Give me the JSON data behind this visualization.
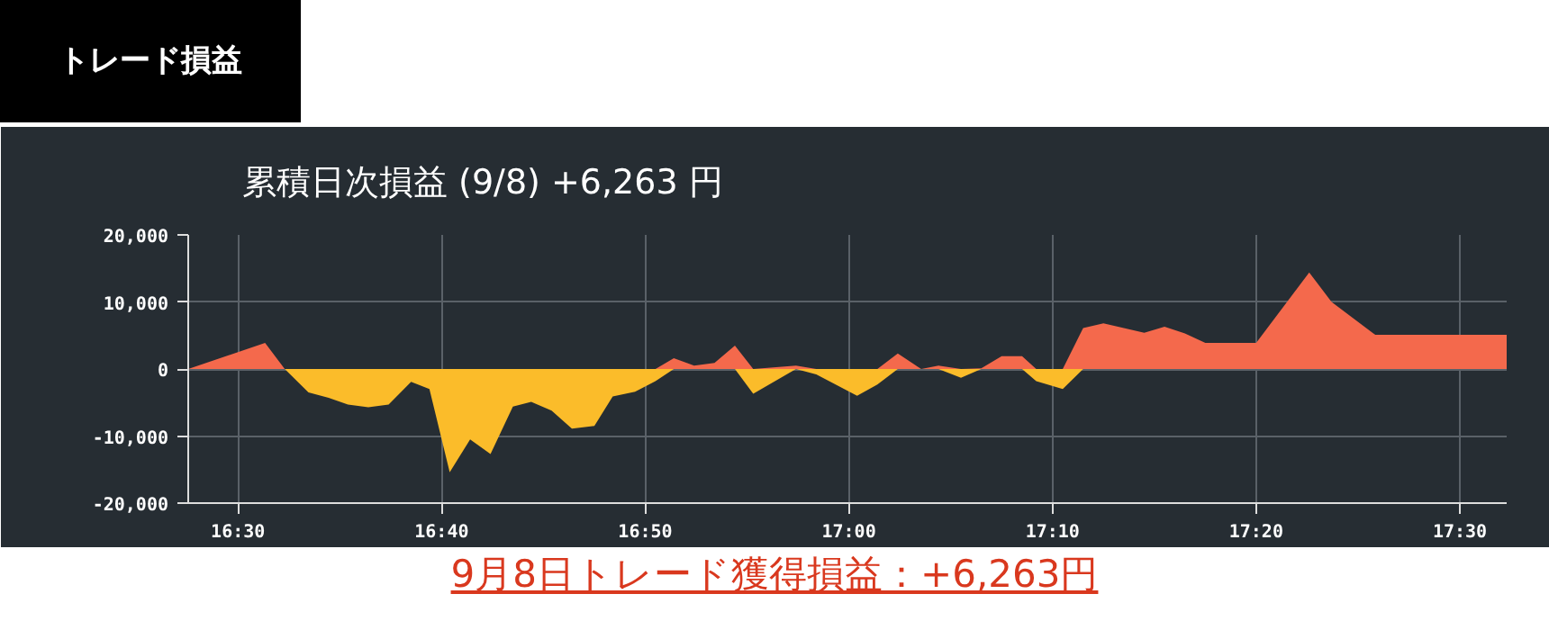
{
  "chart_data": {
    "type": "area",
    "title": "トレード損益",
    "subtitle": "累積日次損益 (9/8) +6,263 円",
    "annotations": [
      "9月8日トレード獲得損益：+6,263円"
    ],
    "x": [
      16.4593,
      16.5222,
      16.5383,
      16.5577,
      16.5742,
      16.59,
      16.6067,
      16.6233,
      16.6417,
      16.6567,
      16.6733,
      16.69,
      16.7067,
      16.725,
      16.74,
      16.7567,
      16.7733,
      16.7917,
      16.8067,
      16.825,
      16.8417,
      16.8567,
      16.8733,
      16.89,
      16.9067,
      16.9217,
      16.9567,
      16.9733,
      17.0067,
      17.0233,
      17.04,
      17.0592,
      17.0733,
      17.0917,
      17.1083,
      17.125,
      17.1417,
      17.1533,
      17.175,
      17.1917,
      17.2083,
      17.225,
      17.2417,
      17.2583,
      17.275,
      17.2917,
      17.3333,
      17.3767,
      17.395,
      17.4308,
      17.5383
    ],
    "series": [
      {
        "color": "#f4694c",
        "values": [
          0,
          3900,
          0,
          0,
          0,
          0,
          0,
          0,
          0,
          0,
          0,
          0,
          0,
          0,
          0,
          0,
          0,
          0,
          0,
          0,
          0,
          1600,
          500,
          900,
          3500,
          0,
          500,
          0,
          0,
          0,
          2300,
          0,
          500,
          0,
          100,
          1900,
          1900,
          0,
          0,
          6100,
          6800,
          6100,
          5400,
          6300,
          5300,
          3900,
          3900,
          14400,
          10000,
          5100,
          5100
        ]
      },
      {
        "color": "#fbbc2a",
        "values": [
          0,
          0,
          0,
          -3500,
          -4300,
          -5300,
          -5700,
          -5300,
          -1900,
          -3000,
          -15400,
          -10500,
          -12700,
          -5600,
          -4900,
          -6200,
          -8900,
          -8500,
          -4100,
          -3400,
          -1800,
          0,
          0,
          0,
          0,
          -3700,
          0,
          -800,
          -4000,
          -2300,
          0,
          0,
          0,
          -1300,
          0,
          0,
          0,
          -1800,
          -3000,
          0,
          0,
          0,
          0,
          0,
          0,
          0,
          0,
          0,
          0,
          0,
          0
        ]
      }
    ],
    "xlim": [
      16.4593,
      17.5383
    ],
    "xticks": [
      {
        "value": 16.5,
        "label": "16:30"
      },
      {
        "value": 16.6667,
        "label": "16:40"
      },
      {
        "value": 16.8333,
        "label": "16:50"
      },
      {
        "value": 17.0,
        "label": "17:00"
      },
      {
        "value": 17.1667,
        "label": "17:10"
      },
      {
        "value": 17.3333,
        "label": "17:20"
      },
      {
        "value": 17.5,
        "label": "17:30"
      }
    ],
    "ylim": [
      -20000,
      20000
    ],
    "yticks": [
      {
        "value": -20000,
        "label": "-20,000"
      },
      {
        "value": -10000,
        "label": "-10,000"
      },
      {
        "value": 0,
        "label": "0"
      },
      {
        "value": 10000,
        "label": "10,000"
      },
      {
        "value": 20000,
        "label": "20,000"
      }
    ],
    "grid": true
  }
}
